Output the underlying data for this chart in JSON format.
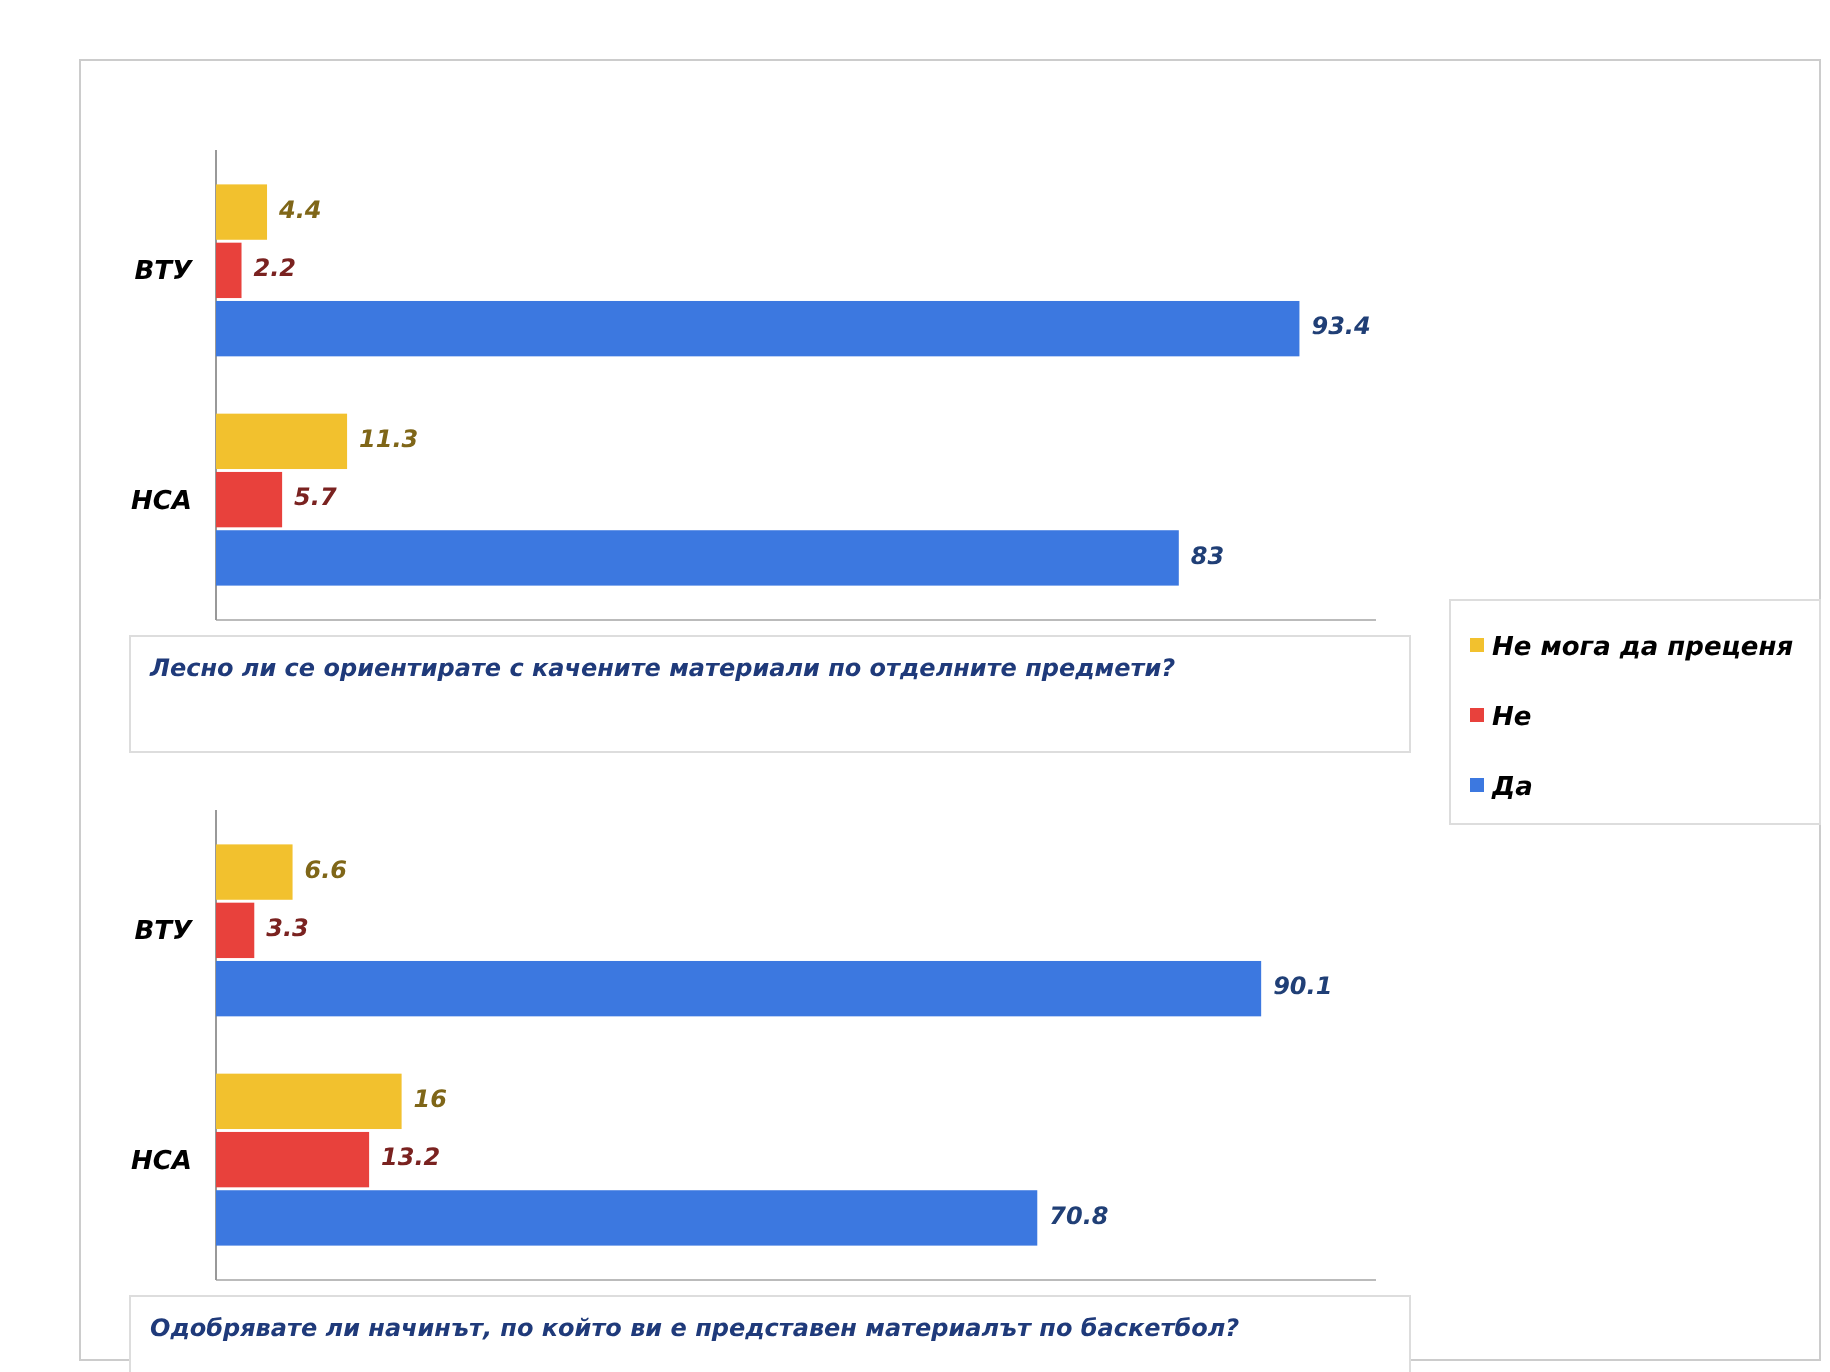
{
  "chart_data": [
    {
      "type": "bar",
      "orientation": "horizontal",
      "categories": [
        "ВТУ",
        "НСА"
      ],
      "series": [
        {
          "name": "Не мога да преценя",
          "color": "#f2c12e",
          "values": [
            4.4,
            11.3
          ]
        },
        {
          "name": "Не",
          "color": "#e8413c",
          "values": [
            2.2,
            5.7
          ]
        },
        {
          "name": "Да",
          "color": "#3c78e0",
          "values": [
            93.4,
            83
          ]
        }
      ],
      "data_labels": true,
      "xlim": [
        0,
        100
      ],
      "tick_labels": "y",
      "legend": "right",
      "annotations": [
        "Лесно ли се ориентирате  с качените материали по отделните предмети?"
      ]
    },
    {
      "type": "bar",
      "orientation": "horizontal",
      "categories": [
        "ВТУ",
        "НСА"
      ],
      "series": [
        {
          "name": "Не мога да преценя",
          "color": "#f2c12e",
          "values": [
            6.6,
            16
          ]
        },
        {
          "name": "Не",
          "color": "#e8413c",
          "values": [
            3.3,
            13.2
          ]
        },
        {
          "name": "Да",
          "color": "#3c78e0",
          "values": [
            90.1,
            70.8
          ]
        }
      ],
      "data_labels": true,
      "xlim": [
        0,
        100
      ],
      "tick_labels": "y",
      "annotations": [
        "Одобрявате ли начинът, по който ви е представен материалът по баскетбол?"
      ]
    }
  ]
}
